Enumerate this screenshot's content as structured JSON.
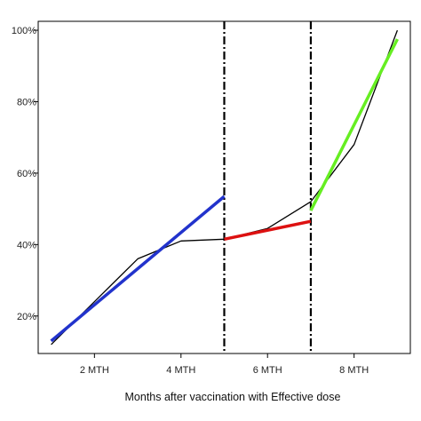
{
  "chart_data": {
    "type": "line",
    "title": "",
    "xlabel": "Months after vaccination with Effective dose",
    "ylabel": "",
    "x_ticks": [
      {
        "value": 2,
        "label": "2 MTH"
      },
      {
        "value": 4,
        "label": "4 MTH"
      },
      {
        "value": 6,
        "label": "6 MTH"
      },
      {
        "value": 8,
        "label": "8 MTH"
      }
    ],
    "y_ticks": [
      {
        "value": 20,
        "label": "20%"
      },
      {
        "value": 40,
        "label": "40%"
      },
      {
        "value": 60,
        "label": "60%"
      },
      {
        "value": 80,
        "label": "80%"
      },
      {
        "value": 100,
        "label": "100%"
      }
    ],
    "xlim": [
      0.7,
      9.3
    ],
    "ylim": [
      9.5,
      102.5
    ],
    "grid": false,
    "legend": "none",
    "vertical_markers": [
      {
        "x": 5,
        "style": "dash-dot",
        "color": "#000000"
      },
      {
        "x": 7,
        "style": "dash-dot",
        "color": "#000000"
      }
    ],
    "series": [
      {
        "color": "#000000",
        "width": 1.3,
        "x": [
          1,
          2,
          3,
          3.5,
          4,
          5,
          6,
          7,
          8,
          9
        ],
        "y": [
          12,
          24,
          36,
          38.5,
          41,
          41.5,
          44.5,
          52,
          68,
          100
        ]
      },
      {
        "color": "#2233cc",
        "width": 3.5,
        "x": [
          1,
          5
        ],
        "y": [
          13,
          53.5
        ]
      },
      {
        "color": "#dd1111",
        "width": 3.5,
        "x": [
          5,
          7
        ],
        "y": [
          41.5,
          46.5
        ]
      },
      {
        "color": "#66ee22",
        "width": 3.5,
        "x": [
          7,
          9
        ],
        "y": [
          49.5,
          97.5
        ]
      }
    ]
  }
}
